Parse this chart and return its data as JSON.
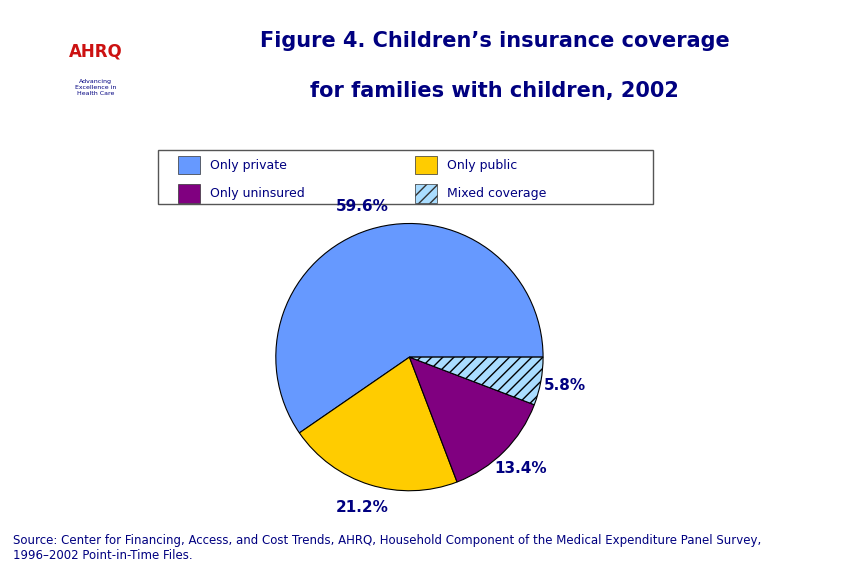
{
  "title_line1": "Figure 4. Children’s insurance coverage",
  "title_line2": "for families with children, 2002",
  "title_color": "#000080",
  "title_fontsize": 15,
  "slices": [
    59.6,
    21.2,
    13.4,
    5.8
  ],
  "pct_labels": [
    "59.6%",
    "21.2%",
    "13.4%",
    "5.8%"
  ],
  "colors": [
    "#6699FF",
    "#FFCC00",
    "#800080",
    "#AADDFF"
  ],
  "hatch": [
    null,
    null,
    null,
    "///"
  ],
  "legend_labels": [
    "Only private",
    "Only public",
    "Only uninsured",
    "Mixed coverage"
  ],
  "source_text": "Source: Center for Financing, Access, and Cost Trends, AHRQ, Household Component of the Medical Expenditure Panel Survey,\n1996–2002 Point-in-Time Files.",
  "source_color": "#000080",
  "source_fontsize": 8.5,
  "bg_color": "#FFFFFF",
  "label_color": "#000080",
  "label_fontsize": 11
}
